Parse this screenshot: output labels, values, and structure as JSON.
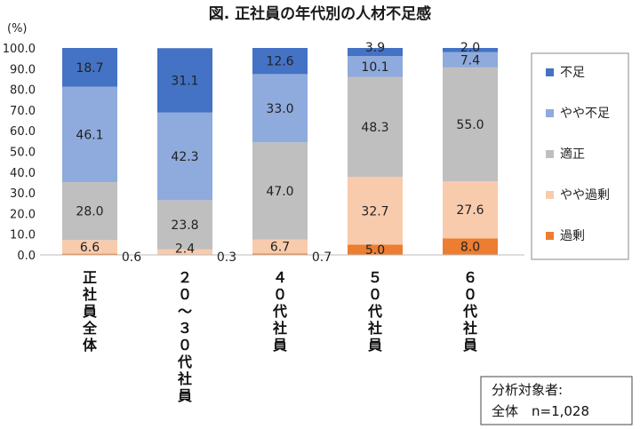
{
  "chart_data": {
    "type": "bar",
    "stacked": true,
    "title": "図. 正社員の年代別の人材不足感",
    "ylabel": "(%)",
    "ylim": [
      0,
      100
    ],
    "yticks": [
      "0.0",
      "10.0",
      "20.0",
      "30.0",
      "40.0",
      "50.0",
      "60.0",
      "70.0",
      "80.0",
      "90.0",
      "100.0"
    ],
    "categories": [
      "正社員全体",
      "20～30代社員",
      "40代社員",
      "50代社員",
      "60代社員"
    ],
    "category_labels": [
      "正\n社\n員\n全\n体",
      "２\n０\n～\n３\n０\n代\n社\n員",
      "４\n０\n代\n社\n員",
      "５\n０\n代\n社\n員",
      "６\n０\n代\n社\n員"
    ],
    "series": [
      {
        "name": "過剰",
        "color": "#ed7d31",
        "values": [
          0.6,
          0.3,
          0.7,
          5.0,
          8.0
        ],
        "labels": [
          "0.6",
          "0.3",
          "0.7",
          "5.0",
          "8.0"
        ]
      },
      {
        "name": "やや過剰",
        "color": "#f8cbad",
        "values": [
          6.6,
          2.4,
          6.7,
          32.7,
          27.6
        ],
        "labels": [
          "6.6",
          "2.4",
          "6.7",
          "32.7",
          "27.6"
        ]
      },
      {
        "name": "適正",
        "color": "#bfbfbf",
        "values": [
          28.0,
          23.8,
          47.0,
          48.3,
          55.0
        ],
        "labels": [
          "28.0",
          "23.8",
          "47.0",
          "48.3",
          "55.0"
        ]
      },
      {
        "name": "やや不足",
        "color": "#8faadc",
        "values": [
          46.1,
          42.3,
          33.0,
          10.1,
          7.4
        ],
        "labels": [
          "46.1",
          "42.3",
          "33.0",
          "10.1",
          "7.4"
        ]
      },
      {
        "name": "不足",
        "color": "#4472c4",
        "values": [
          18.7,
          31.1,
          12.6,
          3.9,
          2.0
        ],
        "labels": [
          "18.7",
          "31.1",
          "12.6",
          "3.9",
          "2.0"
        ]
      }
    ],
    "legend_order": [
      "不足",
      "やや不足",
      "適正",
      "やや過剰",
      "過剰"
    ],
    "legend_position": "right",
    "grid": false
  },
  "note": {
    "line1": "分析対象者:",
    "line2": "全体　n=1,028"
  }
}
